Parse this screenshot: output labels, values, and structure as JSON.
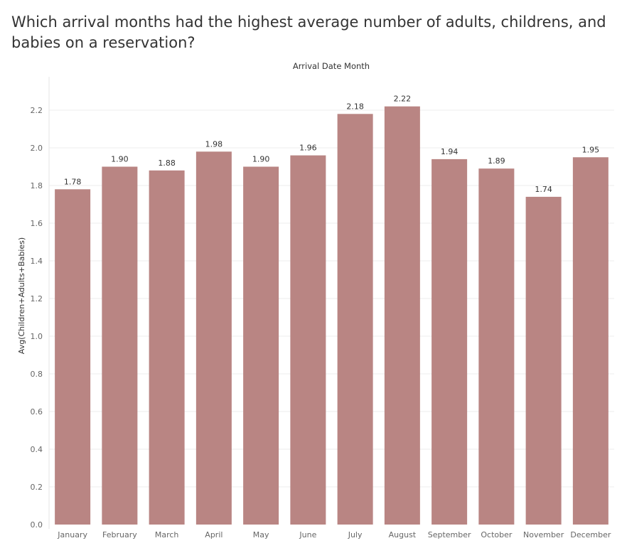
{
  "title": "Which arrival months had the highest average number of adults, childrens, and babies on a reservation?",
  "chart_data": {
    "type": "bar",
    "title": "Which arrival months had the highest average number of adults, childrens, and babies on a reservation?",
    "header": "Arrival Date Month",
    "ylabel": "Avg(Children+Adults+Babies)",
    "xlabel": "",
    "categories": [
      "January",
      "February",
      "March",
      "April",
      "May",
      "June",
      "July",
      "August",
      "September",
      "October",
      "November",
      "December"
    ],
    "values": [
      1.78,
      1.9,
      1.88,
      1.98,
      1.9,
      1.96,
      2.18,
      2.22,
      1.94,
      1.89,
      1.74,
      1.95
    ],
    "value_labels": [
      "1.78",
      "1.90",
      "1.88",
      "1.98",
      "1.90",
      "1.96",
      "2.18",
      "2.22",
      "1.94",
      "1.89",
      "1.74",
      "1.95"
    ],
    "yticks": [
      0.0,
      0.2,
      0.4,
      0.6,
      0.8,
      1.0,
      1.2,
      1.4,
      1.6,
      1.8,
      2.0,
      2.2
    ],
    "ytick_labels": [
      "0.0",
      "0.2",
      "0.4",
      "0.6",
      "0.8",
      "1.0",
      "1.2",
      "1.4",
      "1.6",
      "1.8",
      "2.0",
      "2.2"
    ],
    "ylim": [
      0,
      2.3
    ],
    "grid": true,
    "bar_color": "#b98583"
  }
}
